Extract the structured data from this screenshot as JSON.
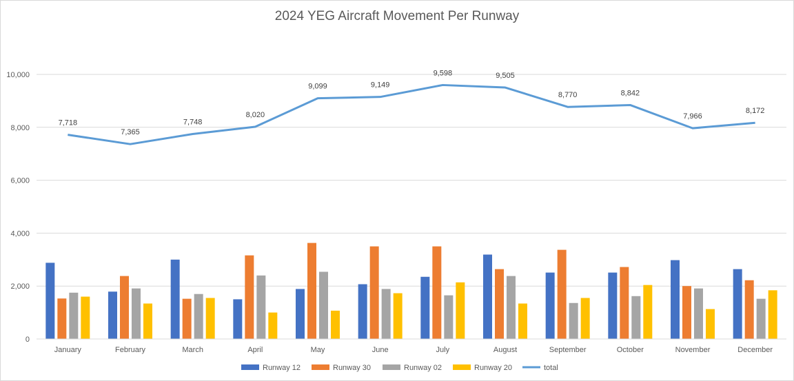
{
  "chart_data": {
    "type": "bar",
    "title": "2024 YEG Aircraft Movement Per Runway",
    "categories": [
      "January",
      "February",
      "March",
      "April",
      "May",
      "June",
      "July",
      "August",
      "September",
      "October",
      "November",
      "December"
    ],
    "ylim": [
      0,
      10000
    ],
    "yticks": [
      "0",
      "2,000",
      "4,000",
      "6,000",
      "8,000",
      "10,000"
    ],
    "ytick_values": [
      0,
      2000,
      4000,
      6000,
      8000,
      10000
    ],
    "grid": true,
    "legend_position": "bottom",
    "series": [
      {
        "name": "Runway 12",
        "kind": "bar",
        "color": "#4472C4",
        "values": [
          2880,
          1790,
          3000,
          1500,
          1890,
          2070,
          2350,
          3190,
          2510,
          2510,
          2980,
          2640
        ]
      },
      {
        "name": "Runway 30",
        "kind": "bar",
        "color": "#ED7D31",
        "values": [
          1530,
          2380,
          1520,
          3160,
          3630,
          3500,
          3500,
          2640,
          3370,
          2720,
          2000,
          2220
        ]
      },
      {
        "name": "Runway 02",
        "kind": "bar",
        "color": "#A5A5A5",
        "values": [
          1750,
          1910,
          1700,
          2400,
          2540,
          1890,
          1650,
          2380,
          1360,
          1620,
          1910,
          1520
        ]
      },
      {
        "name": "Runway 20",
        "kind": "bar",
        "color": "#FFC000",
        "values": [
          1600,
          1340,
          1550,
          1000,
          1070,
          1730,
          2140,
          1340,
          1550,
          2040,
          1130,
          1840
        ]
      },
      {
        "name": "total",
        "kind": "line",
        "color": "#5B9BD5",
        "values": [
          7718,
          7365,
          7748,
          8020,
          9099,
          9149,
          9598,
          9505,
          8770,
          8842,
          7966,
          8172
        ],
        "labels": [
          "7,718",
          "7,365",
          "7,748",
          "8,020",
          "9,099",
          "9,149",
          "9,598",
          "9,505",
          "8,770",
          "8,842",
          "7,966",
          "8,172"
        ]
      }
    ]
  }
}
